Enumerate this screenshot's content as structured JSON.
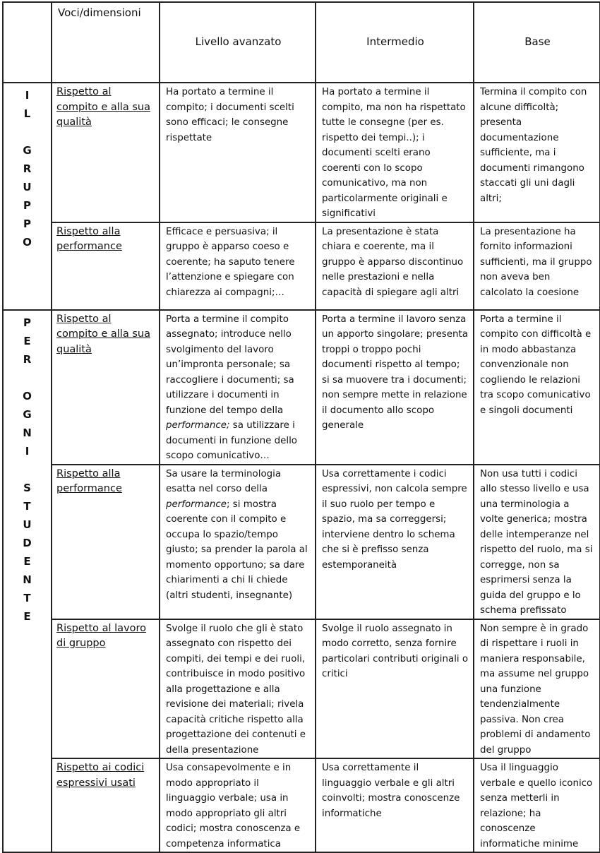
{
  "header": {
    "voci": "Voci/dimensioni",
    "levels": [
      "Livello avanzato",
      "Intermedio",
      "Base"
    ]
  },
  "groups": [
    {
      "label": "I\nL\n\nG\nR\nU\nP\nP\nO",
      "rows": [
        {
          "dimension": "Rispetto al compito e alla sua qualità",
          "avanzato": "Ha  portato a termine il compito; i documenti scelti sono efficaci; le consegne rispettate",
          "intermedio": "Ha portato a termine il compito, ma non ha rispettato tutte le consegne (per es. rispetto dei tempi..); i documenti scelti erano coerenti con lo scopo comunicativo, ma non particolarmente originali e significativi",
          "base": "Termina il compito con alcune difficoltà; presenta documentazione sufficiente, ma i documenti rimangono staccati gli uni dagli altri;"
        },
        {
          "dimension": "Rispetto alla performance",
          "avanzato": "Efficace e persuasiva; il gruppo è apparso coeso e coerente; ha saputo tenere l’attenzione e spiegare con chiarezza ai compagni;…",
          "intermedio": "La presentazione è stata chiara e coerente, ma il gruppo è apparso discontinuo nelle prestazioni e nella capacità di spiegare agli altri",
          "base": "La presentazione ha fornito informazioni sufficienti, ma il gruppo non aveva ben calcolato la coesione"
        }
      ]
    },
    {
      "label": "P\nE\nR\n\nO\nG\nN\nI\n\nS\nT\nU\nD\nE\nN\nT\nE",
      "rows": [
        {
          "dimension": "Rispetto al compito e alla sua qualità",
          "avanzato_a": "Porta a termine il compito assegnato; introduce nello svolgimento del lavoro un’impronta personale; sa raccogliere i documenti; sa utilizzare i  documenti in funzione del tempo della ",
          "avanzato_i": "performance;",
          "avanzato_b": " sa utilizzare i documenti in funzione dello scopo comunicativo…",
          "intermedio": "Porta a termine il lavoro senza un apporto singolare; presenta troppi o troppo pochi documenti rispetto al tempo; si sa muovere tra i documenti; non sempre mette in relazione il documento allo scopo generale",
          "base": "Porta a termine il compito con difficoltà e in modo abbastanza convenzionale non cogliendo le relazioni tra scopo comunicativo e singoli documenti"
        },
        {
          "dimension": "Rispetto alla performance",
          "avanzato_a": "Sa usare la terminologia esatta nel corso della ",
          "avanzato_i": "performance",
          "avanzato_b": "; si mostra coerente con il compito e occupa lo spazio/tempo giusto; sa prender la parola al momento opportuno; sa dare chiarimenti a chi li chiede (altri studenti, insegnante)",
          "intermedio": "Usa correttamente i codici espressivi, non calcola sempre il suo ruolo per tempo e spazio, ma sa correggersi; interviene dentro lo schema che si è prefisso senza estemporaneità",
          "base": "Non usa tutti i codici allo stesso livello e usa una terminologia a volte generica; mostra delle intemperanze nel rispetto del ruolo, ma si corregge, non sa esprimersi senza la guida del gruppo e lo schema prefissato"
        },
        {
          "dimension": "Rispetto al lavoro di gruppo",
          "avanzato": "Svolge il ruolo che gli è stato assegnato con rispetto dei compiti, dei tempi e dei ruoli, contribuisce in modo positivo alla progettazione e alla revisione dei materiali; rivela capacità critiche rispetto alla progettazione dei contenuti e della presentazione",
          "intermedio": "Svolge il ruolo assegnato in modo corretto, senza fornire particolari contributi originali o critici",
          "base": "Non sempre è in grado di rispettare i ruoli in maniera responsabile, ma assume nel gruppo una funzione tendenzialmente passiva. Non crea problemi di andamento del gruppo"
        },
        {
          "dimension": "Rispetto ai codici espressivi usati",
          "avanzato": "Usa consapevolmente e in modo appropriato il linguaggio verbale; usa in modo appropriato gli altri codici; mostra conoscenza e competenza informatica",
          "intermedio": "Usa correttamente il linguaggio verbale e gli altri coinvolti; mostra conoscenze informatiche",
          "base": "Usa il linguaggio verbale e quello iconico senza metterli in relazione; ha conoscenze informatiche minime"
        }
      ]
    }
  ]
}
